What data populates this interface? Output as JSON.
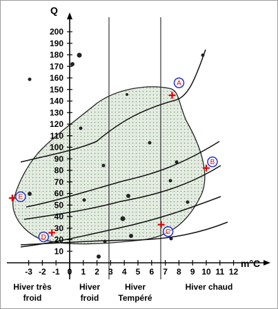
{
  "axes": {
    "y_label": "Q",
    "x_label": "m°C",
    "y_ticks": [
      0,
      10,
      20,
      30,
      40,
      50,
      60,
      70,
      80,
      90,
      100,
      110,
      120,
      130,
      140,
      150,
      160,
      170,
      180,
      190,
      200
    ],
    "y_tick_labels": [
      "10",
      "20",
      "30",
      "40",
      "50",
      "60",
      "70",
      "80",
      "90",
      "100",
      "110",
      "120",
      "130",
      "140",
      "150",
      "160",
      "170",
      "180",
      "190",
      "200"
    ],
    "x_ticks": [
      -3,
      -2,
      -1,
      0,
      1,
      2,
      3,
      4,
      5,
      6,
      7,
      8,
      9,
      10,
      11,
      12
    ],
    "x_tick_labels": [
      "-3",
      "-2",
      "-1",
      "0",
      "1",
      "2",
      "3",
      "4",
      "5",
      "6",
      "7",
      "8",
      "9",
      "10",
      "11",
      "12"
    ]
  },
  "zones": [
    {
      "line1": "Hiver très",
      "line2": "froid"
    },
    {
      "line1": "Hiver",
      "line2": "froid"
    },
    {
      "line1": "Hiver",
      "line2": "Tempéré"
    },
    {
      "line1": "Hiver chaud",
      "line2": ""
    }
  ],
  "zone_boundaries_x": [
    0,
    3,
    7
  ],
  "labeled_points": [
    {
      "label": "A",
      "x": 7.5,
      "y": 145
    },
    {
      "label": "B",
      "x": 10,
      "y": 82
    },
    {
      "label": "C",
      "x": 6.7,
      "y": 33
    },
    {
      "label": "D",
      "x": -1.3,
      "y": 26
    },
    {
      "label": "E",
      "x": -4.2,
      "y": 56
    }
  ],
  "colors": {
    "envelope_fill": "#e4ece1",
    "marker": "#e00000",
    "circle": "#1f2fd6"
  }
}
